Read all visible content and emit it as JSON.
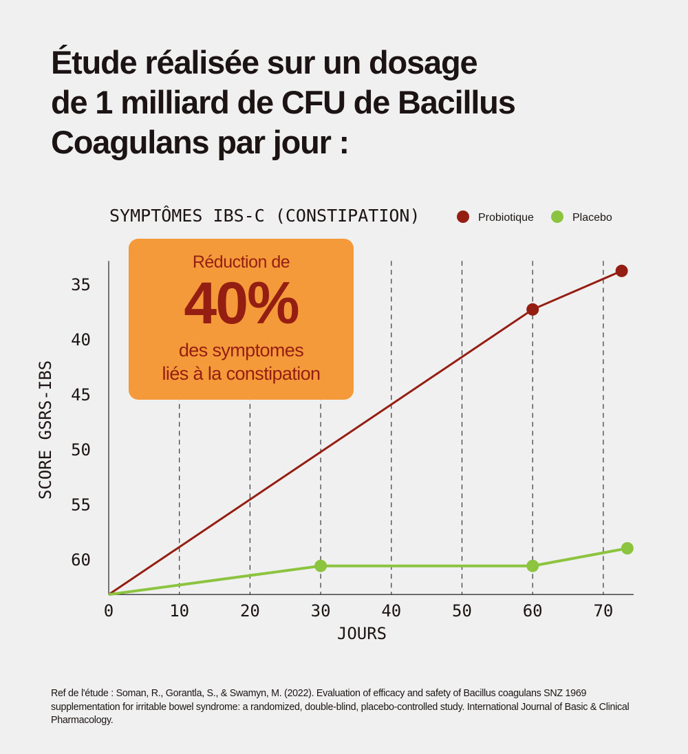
{
  "title": "Étude réalisée sur un dosage\nde 1 milliard de CFU de Bacillus\nCoagulans par jour :",
  "callout": {
    "line1": "Réduction de",
    "value": "40%",
    "line3": "des symptomes",
    "line4": "liés à la constipation"
  },
  "reference": "Ref de l'étude : Soman, R., Gorantla, S., & Swamyn, M. (2022). Evaluation of efficacy and safety of Bacillus coagulans SNZ 1969 supplementation for irritable bowel syndrome: a randomized, double-blind, placebo-controlled study. International Journal of Basic & Clinical Pharmacology.",
  "chart_data": {
    "type": "line",
    "title": "SYMPTÔMES IBS-C (CONSTIPATION)",
    "xlabel": "JOURS",
    "ylabel": "SCORE GSRS-IBS",
    "xlim": [
      0,
      74
    ],
    "ylim": [
      63.2,
      33.2
    ],
    "y_reversed": true,
    "x_ticks": [
      0,
      10,
      20,
      30,
      40,
      50,
      60,
      70
    ],
    "y_ticks": [
      35,
      40,
      45,
      50,
      55,
      60
    ],
    "grid": "vertical dashed",
    "legend_placement": "top-right",
    "series": [
      {
        "name": "Probiotique",
        "color": "#951e12",
        "points": [
          [
            0,
            63.2
          ],
          [
            60,
            37.3
          ],
          [
            72.6,
            33.8
          ]
        ],
        "markers": [
          false,
          true,
          true
        ]
      },
      {
        "name": "Placebo",
        "color": "#8cc43f",
        "points": [
          [
            0,
            63.2
          ],
          [
            30,
            60.6
          ],
          [
            60,
            60.6
          ],
          [
            73.4,
            59.0
          ]
        ],
        "markers": [
          false,
          true,
          true,
          true
        ]
      }
    ]
  }
}
